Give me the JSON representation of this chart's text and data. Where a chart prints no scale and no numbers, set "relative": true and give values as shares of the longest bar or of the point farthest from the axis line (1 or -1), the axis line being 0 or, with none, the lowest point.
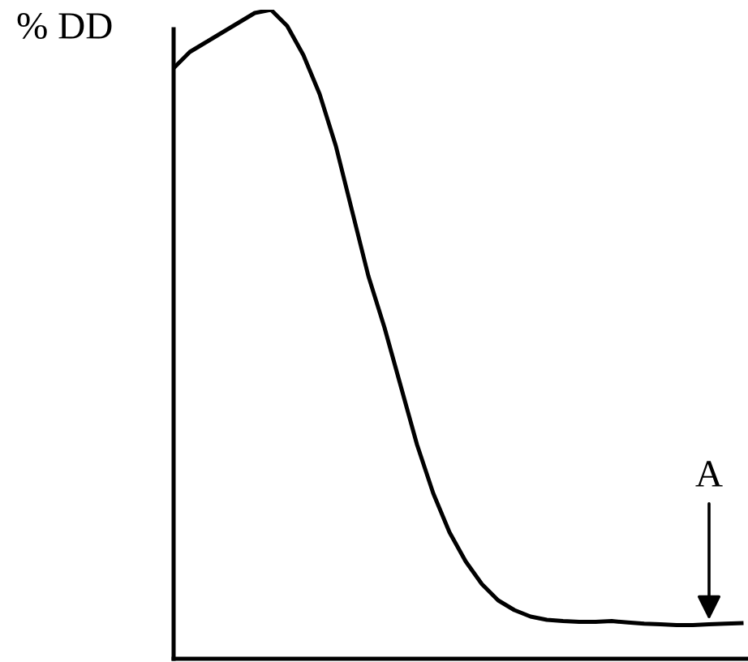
{
  "chart_data": {
    "type": "line",
    "relative": true,
    "ylabel": "% DD",
    "annotations": [
      "A"
    ],
    "categories": [
      null,
      null,
      null,
      null,
      null,
      null,
      null,
      null,
      null,
      null,
      null,
      null,
      null,
      null,
      null,
      null,
      null,
      null,
      null,
      null,
      null,
      null,
      null,
      null,
      null,
      null,
      null,
      null,
      null,
      null,
      null,
      null,
      null,
      null,
      null,
      null
    ],
    "series": [
      {
        "color": "#000000",
        "values": [
          0.91,
          0.935,
          0.95,
          0.965,
          0.98,
          0.995,
          1.0,
          0.975,
          0.93,
          0.87,
          0.79,
          0.69,
          0.59,
          0.51,
          0.42,
          0.33,
          0.255,
          0.195,
          0.15,
          0.115,
          0.09,
          0.075,
          0.065,
          0.06,
          0.058,
          0.057,
          0.057,
          0.058,
          0.056,
          0.054,
          0.053,
          0.052,
          0.052,
          0.053,
          0.054,
          0.055
        ]
      }
    ],
    "legend": false,
    "marker": "none",
    "line_style": "solid"
  }
}
